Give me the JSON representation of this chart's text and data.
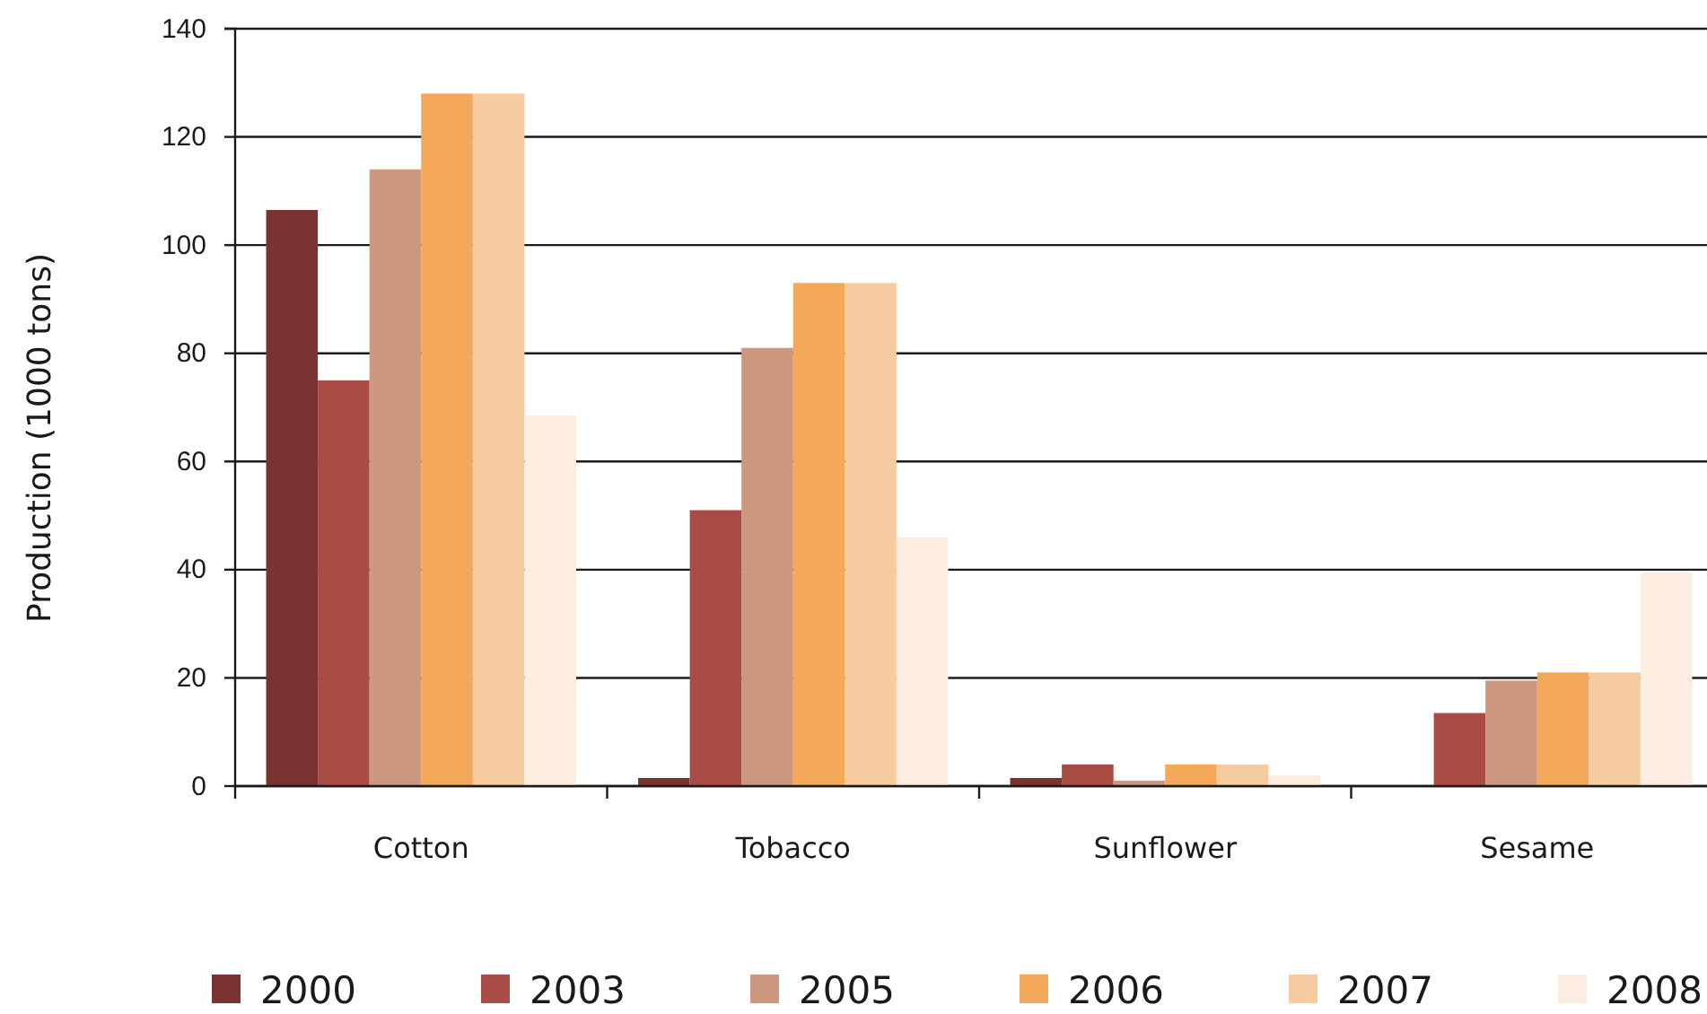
{
  "chart_data": {
    "type": "bar",
    "ylabel": "Production (1000 tons)",
    "categories": [
      "Cotton",
      "Tobacco",
      "Sunflower",
      "Sesame"
    ],
    "series": [
      {
        "name": "2000",
        "color": "#7a3330",
        "values": [
          106.5,
          1.5,
          1.5,
          null
        ]
      },
      {
        "name": "2003",
        "color": "#a84c45",
        "values": [
          75,
          51,
          4,
          13.5
        ]
      },
      {
        "name": "2005",
        "color": "#cc9880",
        "values": [
          114,
          81,
          1,
          19.5
        ]
      },
      {
        "name": "2006",
        "color": "#f3a85a",
        "values": [
          128,
          93,
          4,
          21
        ]
      },
      {
        "name": "2007",
        "color": "#f6cba0",
        "values": [
          128,
          93,
          4,
          21
        ]
      },
      {
        "name": "2008",
        "color": "#fdece0",
        "values": [
          68.5,
          46,
          2,
          39.5
        ]
      }
    ],
    "ylim": [
      0,
      140
    ],
    "yticks": [
      0,
      20,
      40,
      60,
      80,
      100,
      120,
      140
    ],
    "grid": "y",
    "legend": "bottom"
  }
}
